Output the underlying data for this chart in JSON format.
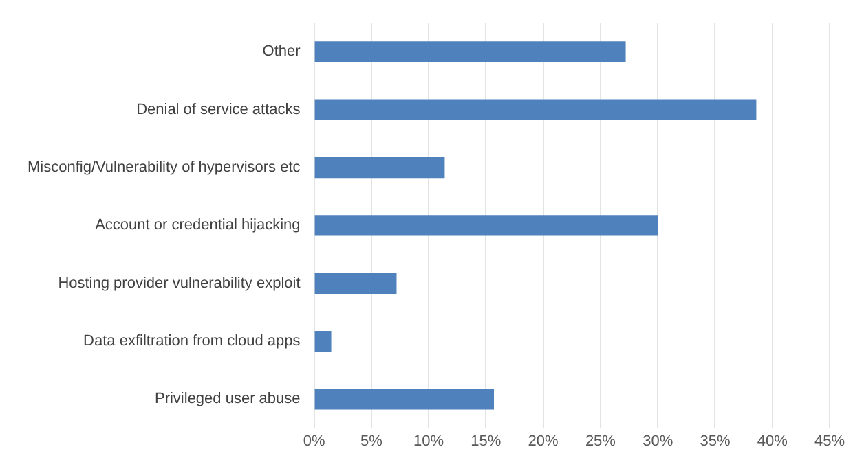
{
  "chart_data": {
    "type": "bar",
    "orientation": "horizontal",
    "categories": [
      "Other",
      "Denial of service attacks",
      "Misconfig/Vulnerability of hypervisors etc",
      "Account or credential hijacking",
      "Hosting provider vulnerability exploit",
      "Data exfiltration from cloud apps",
      "Privileged user abuse"
    ],
    "values": [
      27.2,
      38.6,
      11.4,
      30.0,
      7.2,
      1.5,
      15.7
    ],
    "color": "#4f81bd",
    "xlim": [
      0,
      45
    ],
    "xticks": [
      {
        "value": 0,
        "label": "0%"
      },
      {
        "value": 5,
        "label": "5%"
      },
      {
        "value": 10,
        "label": "10%"
      },
      {
        "value": 15,
        "label": "15%"
      },
      {
        "value": 20,
        "label": "20%"
      },
      {
        "value": 25,
        "label": "25%"
      },
      {
        "value": 30,
        "label": "30%"
      },
      {
        "value": 35,
        "label": "35%"
      },
      {
        "value": 40,
        "label": "40%"
      },
      {
        "value": 45,
        "label": "45%"
      }
    ],
    "grid": "x",
    "legend": false
  }
}
